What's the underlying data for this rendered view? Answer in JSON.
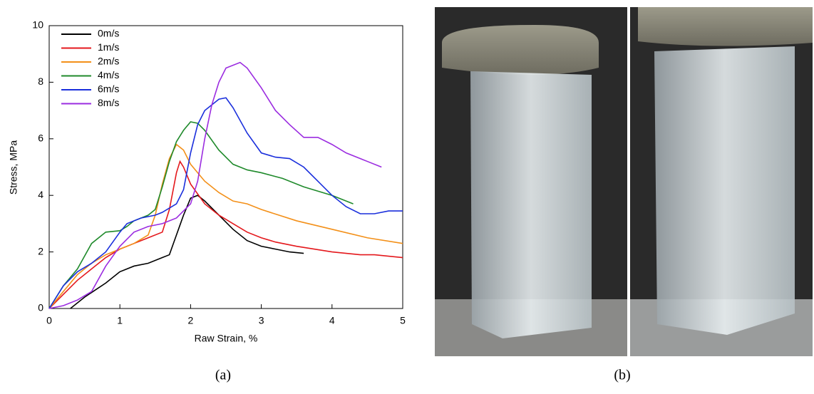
{
  "chart_data": {
    "type": "line",
    "xlabel": "Raw Strain, %",
    "ylabel": "Stress, MPa",
    "xlim": [
      0,
      5
    ],
    "ylim": [
      0,
      10
    ],
    "xticks": [
      0,
      1,
      2,
      3,
      4,
      5
    ],
    "yticks": [
      0,
      2,
      4,
      6,
      8,
      10
    ],
    "legend": "upper left",
    "series": [
      {
        "name": "0m/s",
        "color": "#000000",
        "x": [
          0.3,
          0.5,
          0.8,
          1.0,
          1.2,
          1.4,
          1.6,
          1.7,
          1.8,
          1.9,
          2.0,
          2.1,
          2.2,
          2.4,
          2.6,
          2.8,
          3.0,
          3.2,
          3.4,
          3.6
        ],
        "values": [
          0,
          0.4,
          0.9,
          1.3,
          1.5,
          1.6,
          1.8,
          1.9,
          2.6,
          3.3,
          3.9,
          4.0,
          3.8,
          3.3,
          2.8,
          2.4,
          2.2,
          2.1,
          2.0,
          1.95
        ]
      },
      {
        "name": "1m/s",
        "color": "#e4181c",
        "x": [
          0,
          0.2,
          0.4,
          0.6,
          0.8,
          1.0,
          1.2,
          1.4,
          1.6,
          1.7,
          1.8,
          1.85,
          1.9,
          2.0,
          2.2,
          2.4,
          2.6,
          2.8,
          3.0,
          3.2,
          3.5,
          4.0,
          4.4,
          4.6,
          5.0
        ],
        "values": [
          0,
          0.5,
          1.0,
          1.4,
          1.8,
          2.1,
          2.3,
          2.5,
          2.7,
          3.5,
          4.8,
          5.2,
          5.0,
          4.4,
          3.7,
          3.3,
          3.0,
          2.7,
          2.5,
          2.35,
          2.2,
          2.0,
          1.9,
          1.9,
          1.8
        ]
      },
      {
        "name": "2m/s",
        "color": "#f39019",
        "x": [
          0,
          0.2,
          0.4,
          0.6,
          0.8,
          1.0,
          1.2,
          1.4,
          1.5,
          1.6,
          1.7,
          1.8,
          1.9,
          2.0,
          2.2,
          2.4,
          2.6,
          2.8,
          3.0,
          3.5,
          4.0,
          4.5,
          5.0
        ],
        "values": [
          0,
          0.6,
          1.2,
          1.6,
          1.9,
          2.1,
          2.3,
          2.6,
          3.3,
          4.4,
          5.3,
          5.8,
          5.6,
          5.1,
          4.5,
          4.1,
          3.8,
          3.7,
          3.5,
          3.1,
          2.8,
          2.5,
          2.3
        ]
      },
      {
        "name": "4m/s",
        "color": "#1f8a2b",
        "x": [
          0,
          0.2,
          0.4,
          0.6,
          0.8,
          1.0,
          1.1,
          1.2,
          1.4,
          1.5,
          1.6,
          1.7,
          1.8,
          1.9,
          2.0,
          2.1,
          2.2,
          2.4,
          2.6,
          2.8,
          3.0,
          3.3,
          3.6,
          4.0,
          4.3
        ],
        "values": [
          0,
          0.8,
          1.4,
          2.3,
          2.7,
          2.75,
          2.9,
          3.1,
          3.3,
          3.5,
          4.3,
          5.2,
          5.9,
          6.3,
          6.6,
          6.55,
          6.3,
          5.6,
          5.1,
          4.9,
          4.8,
          4.6,
          4.3,
          4.0,
          3.7
        ]
      },
      {
        "name": "6m/s",
        "color": "#1a2fdc",
        "x": [
          0,
          0.2,
          0.4,
          0.6,
          0.8,
          1.0,
          1.1,
          1.3,
          1.5,
          1.6,
          1.8,
          1.9,
          2.0,
          2.1,
          2.2,
          2.4,
          2.5,
          2.6,
          2.8,
          3.0,
          3.2,
          3.4,
          3.6,
          3.8,
          4.0,
          4.2,
          4.4,
          4.6,
          4.8,
          5.0
        ],
        "values": [
          0,
          0.8,
          1.3,
          1.6,
          2.0,
          2.7,
          3.0,
          3.2,
          3.3,
          3.4,
          3.7,
          4.2,
          5.5,
          6.5,
          7.0,
          7.4,
          7.45,
          7.1,
          6.2,
          5.5,
          5.35,
          5.3,
          5.0,
          4.5,
          4.0,
          3.6,
          3.35,
          3.35,
          3.45,
          3.45
        ]
      },
      {
        "name": "8m/s",
        "color": "#9b2ce0",
        "x": [
          0,
          0.2,
          0.4,
          0.6,
          0.8,
          1.0,
          1.2,
          1.4,
          1.6,
          1.8,
          2.0,
          2.1,
          2.2,
          2.3,
          2.4,
          2.5,
          2.7,
          2.8,
          3.0,
          3.2,
          3.4,
          3.6,
          3.8,
          4.0,
          4.2,
          4.5,
          4.7
        ],
        "values": [
          0,
          0.1,
          0.3,
          0.6,
          1.5,
          2.2,
          2.7,
          2.9,
          3.0,
          3.2,
          3.7,
          4.5,
          6.0,
          7.2,
          8.0,
          8.5,
          8.7,
          8.5,
          7.8,
          7.0,
          6.5,
          6.05,
          6.05,
          5.8,
          5.5,
          5.2,
          5.0
        ]
      }
    ]
  },
  "panel_labels": {
    "a": "(a)",
    "b": "(b)"
  }
}
